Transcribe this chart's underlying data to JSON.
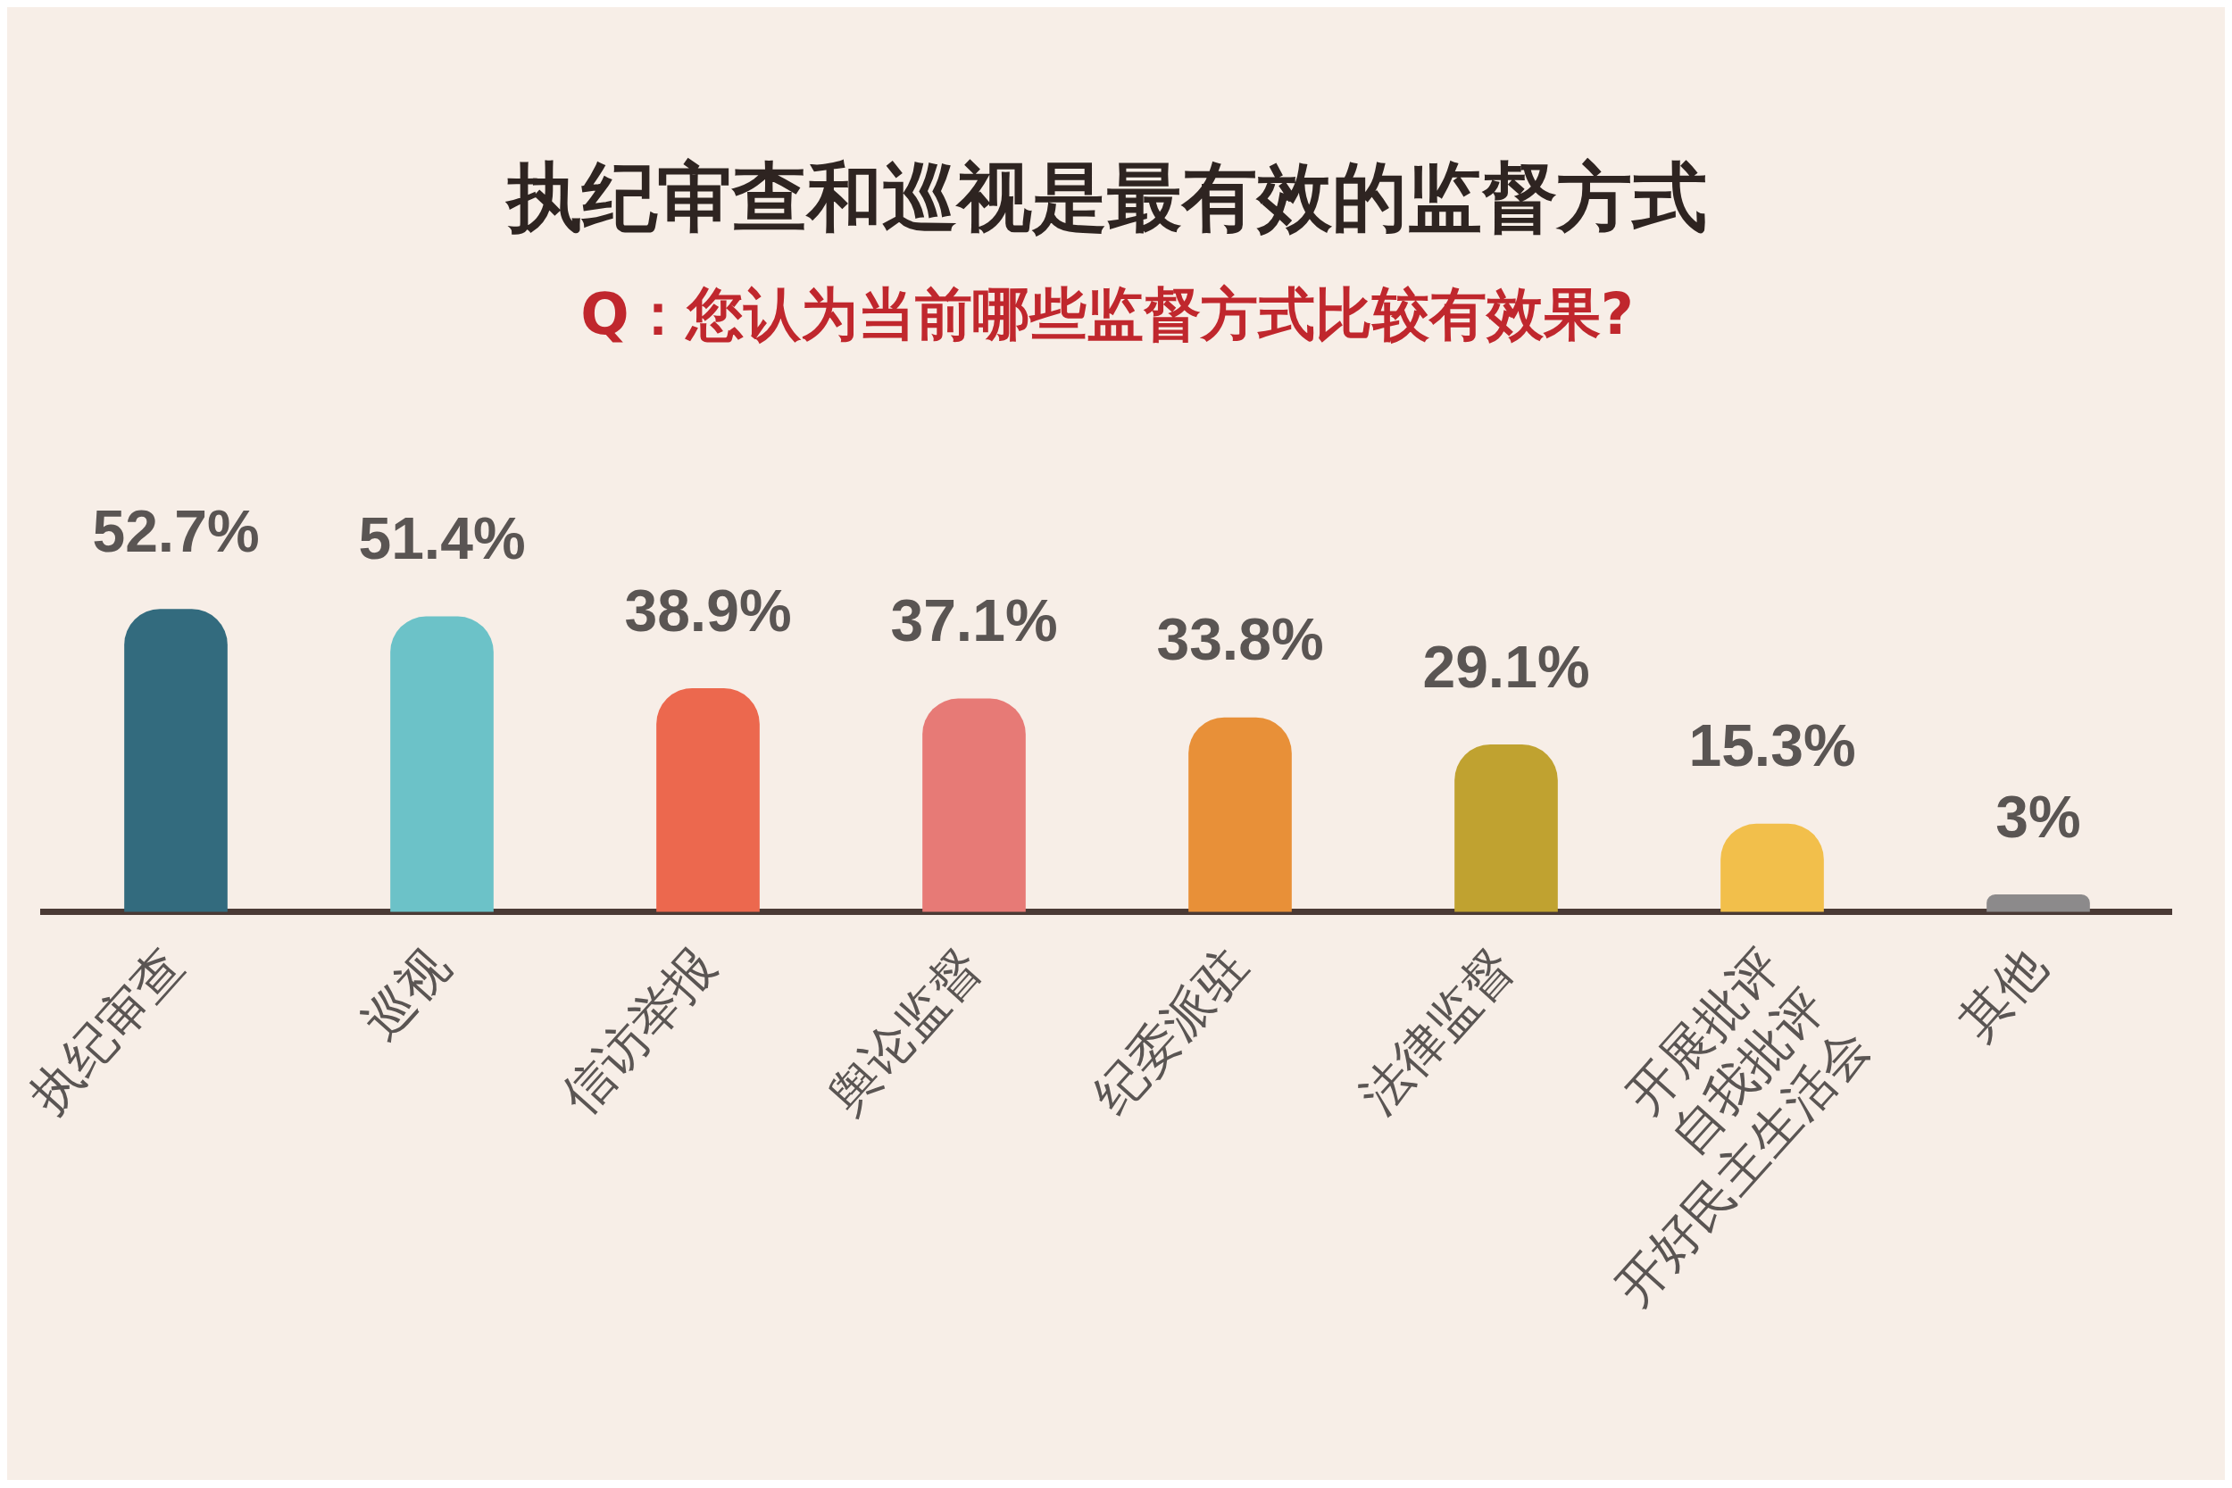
{
  "chart_data": {
    "type": "bar",
    "title": "执纪审查和巡视是最有效的监督方式",
    "subtitle": "Q：您认为当前哪些监督方式比较有效果?",
    "categories": [
      "执纪审查",
      "巡视",
      "信访举报",
      "舆论监督",
      "纪委派驻",
      "法律监督",
      "开展批评\n自我批评\n开好民主生活会",
      "其他"
    ],
    "values": [
      52.7,
      51.4,
      38.9,
      37.1,
      33.8,
      29.1,
      15.3,
      3
    ],
    "colors": [
      "#336b7e",
      "#6cc2c8",
      "#ec684e",
      "#e77a76",
      "#e89038",
      "#c0a230",
      "#f2bf4b",
      "#8c8a8b"
    ],
    "value_labels": [
      "52.7%",
      "51.4%",
      "38.9%",
      "37.1%",
      "33.8%",
      "29.1%",
      "15.3%",
      "3%"
    ],
    "grid": false,
    "legend": false,
    "tick_labels": "x"
  }
}
